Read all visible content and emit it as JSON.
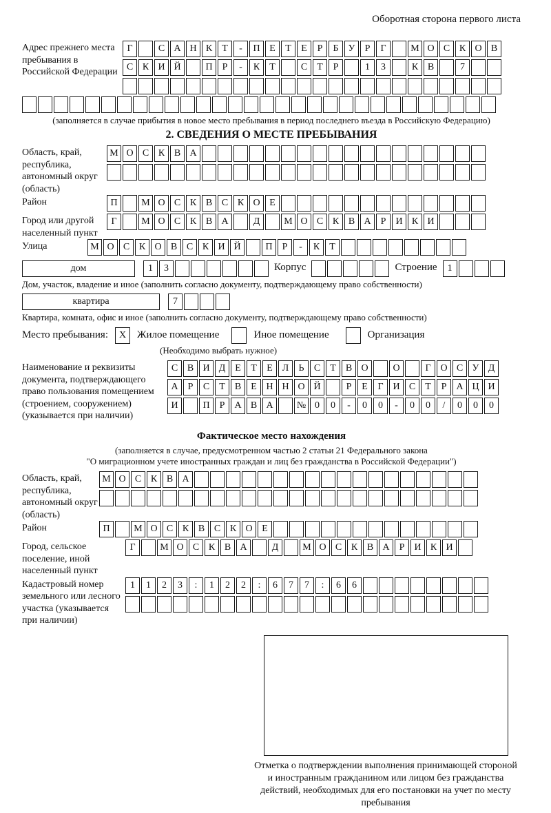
{
  "page": {
    "header_note": "Оборотная сторона первого листа"
  },
  "prev_address": {
    "label": "Адрес прежнего места пребывания в Российской Федерации",
    "rows": [
      "Г САНКТ-ПЕТЕРБУРГ МОСКОВ",
      "СКИЙ ПР-КТ СТР 13 КВ 7  ",
      "                        ",
      "                              "
    ],
    "note": "(заполняется в случае прибытия в новое место пребывания в период последнего въезда в Российскую Федерацию)"
  },
  "section2": {
    "title": "2. СВЕДЕНИЯ О МЕСТЕ ПРЕБЫВАНИЯ",
    "oblast_label": "Область, край, республика, автономный округ (область)",
    "oblast_rows": [
      "МОСКВА                  ",
      "                        "
    ],
    "raion_label": "Район",
    "raion_row": "П МОСКВСКОЕ             ",
    "gorod_label": "Город или другой населенный пункт",
    "gorod_row": "Г МОСКВА Д МОСКВАРИКИ   ",
    "ulitsa_label": "Улица",
    "ulitsa_row": "МОСКОВСКИЙ ПР-КТ        ",
    "dom_box": "дом",
    "dom_cells": "13      ",
    "korpus_label": "Корпус",
    "korpus_cells": "     ",
    "stroenie_label": "Строение",
    "stroenie_cells": "1   ",
    "dom_note": "Дом, участок, владение и иное (заполнить согласно документу, подтверждающему право собственности)",
    "kvartira_box": "квартира",
    "kvartira_cells": "7   ",
    "kvartira_note": "Квартира, комната, офис и иное (заполнить согласно документу, подтверждающему право собственности)"
  },
  "stay_type": {
    "label": "Место пребывания:",
    "options": [
      {
        "mark": "X",
        "label": "Жилое помещение"
      },
      {
        "mark": "",
        "label": "Иное помещение"
      },
      {
        "mark": "",
        "label": "Организация"
      }
    ],
    "note": "(Необходимо выбрать нужное)"
  },
  "doc": {
    "label": "Наименование и реквизиты документа, подтверждающего право пользования помещением (строением, сооружением) (указывается при наличии)",
    "rows": [
      "СВИДЕТЕЛЬСТВО О ГОСУД",
      "АРСТВЕННОЙ РЕГИСТРАЦИ",
      "И ПРАВА №00-00-00/000"
    ]
  },
  "fact": {
    "title": "Фактическое место нахождения",
    "note1": "(заполняется в случае, предусмотренном частью 2 статьи 21 Федерального закона",
    "note2": "\"О миграционном учете иностранных граждан и лиц без гражданства в Российской Федерации\")",
    "oblast_label": "Область, край, республика, автономный округ (область)",
    "oblast_rows": [
      "МОСКВА                  ",
      "                        "
    ],
    "raion_label": "Район",
    "raion_row": "П МОСКВСКОЕ             ",
    "gorod_label": "Город, сельское поселение, иной населенный пункт",
    "gorod_row": "Г МОСКВА Д МОСКВАРИКИ ",
    "cadastre_label": "Кадастровый номер земельного или лесного участка (указывается при наличии)",
    "cadastre_rows": [
      "1123:122:677:66        ",
      "                       "
    ]
  },
  "stamp": {
    "caption": "Отметка о подтверждении выполнения принимающей стороной и иностранным гражданином или лицом без гражданства действий, необходимых для его постановки на учет по месту пребывания"
  }
}
